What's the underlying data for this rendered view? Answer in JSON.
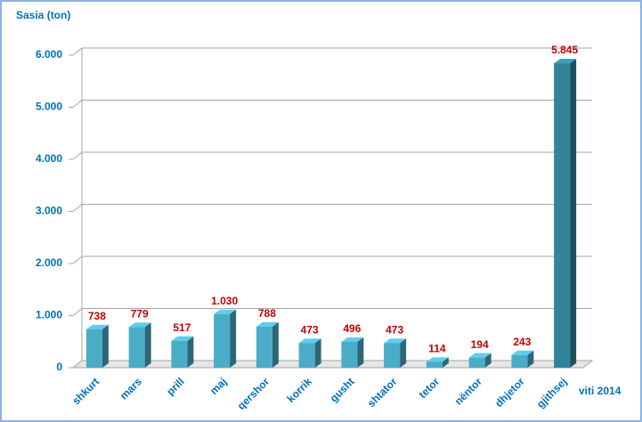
{
  "chart_data": {
    "type": "bar3d",
    "y_label": "Sasia (ton)",
    "x_label": "viti 2014",
    "categories": [
      "shkurt",
      "mars",
      "prill",
      "maj",
      "qershor",
      "korrik",
      "gusht",
      "shtator",
      "tetor",
      "nëntor",
      "dhjetor",
      "gjithsej"
    ],
    "values": [
      738,
      779,
      517,
      1030,
      788,
      473,
      496,
      473,
      114,
      194,
      243,
      5845
    ],
    "value_labels": [
      "738",
      "779",
      "517",
      "1.030",
      "788",
      "473",
      "496",
      "473",
      "114",
      "194",
      "243",
      "5.845"
    ],
    "colors": [
      "#4bacc6",
      "#4bacc6",
      "#4bacc6",
      "#4bacc6",
      "#4bacc6",
      "#4bacc6",
      "#4bacc6",
      "#4bacc6",
      "#4bacc6",
      "#4bacc6",
      "#4bacc6",
      "#31849b"
    ],
    "ylim": [
      0,
      6000
    ],
    "yticks": [
      0,
      {
        "value": 1000,
        "label": "1.000"
      },
      {
        "value": 2000,
        "label": "2.000"
      },
      {
        "value": 3000,
        "label": "3.000"
      },
      {
        "value": 4000,
        "label": "4.000"
      },
      {
        "value": 5000,
        "label": "5.000"
      },
      {
        "value": 6000,
        "label": "6.000"
      }
    ],
    "grid": true
  }
}
